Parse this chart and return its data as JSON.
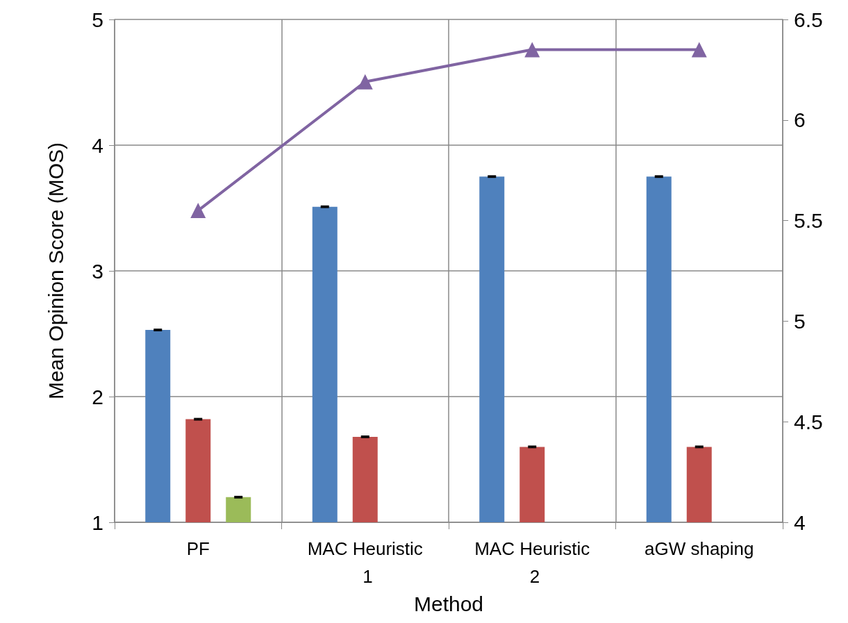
{
  "chart_data": {
    "type": "bar",
    "xlabel": "Method",
    "ylabel": "Mean Opinion Score (MOS)",
    "categories": [
      "PF",
      "MAC Heuristic 1",
      "MAC Heuristic 2",
      "aGW shaping"
    ],
    "series": [
      {
        "color": "#4f81bd",
        "values": [
          2.53,
          3.51,
          3.75,
          3.75
        ],
        "errors": [
          0.005,
          0.005,
          0.005,
          0.005
        ]
      },
      {
        "color": "#c0504d",
        "values": [
          1.82,
          1.68,
          1.6,
          1.6
        ],
        "errors": [
          0.005,
          0.005,
          0.005,
          0.005
        ]
      },
      {
        "color": "#9bbb59",
        "values": [
          1.2,
          1.0,
          1.0,
          1.0
        ],
        "errors": [
          0.005,
          null,
          null,
          null
        ]
      },
      {
        "type": "line",
        "axis": "y2",
        "color": "#8064a2",
        "values": [
          5.55,
          6.19,
          6.35,
          6.35
        ],
        "marker": "triangle",
        "line_style": "solid"
      }
    ],
    "ylim": [
      1,
      5
    ],
    "yticks": [
      1,
      2,
      3,
      4,
      5
    ],
    "y2lim": [
      4,
      6.5
    ],
    "y2ticks": [
      4,
      4.5,
      5,
      5.5,
      6,
      6.5
    ],
    "grid": true
  }
}
